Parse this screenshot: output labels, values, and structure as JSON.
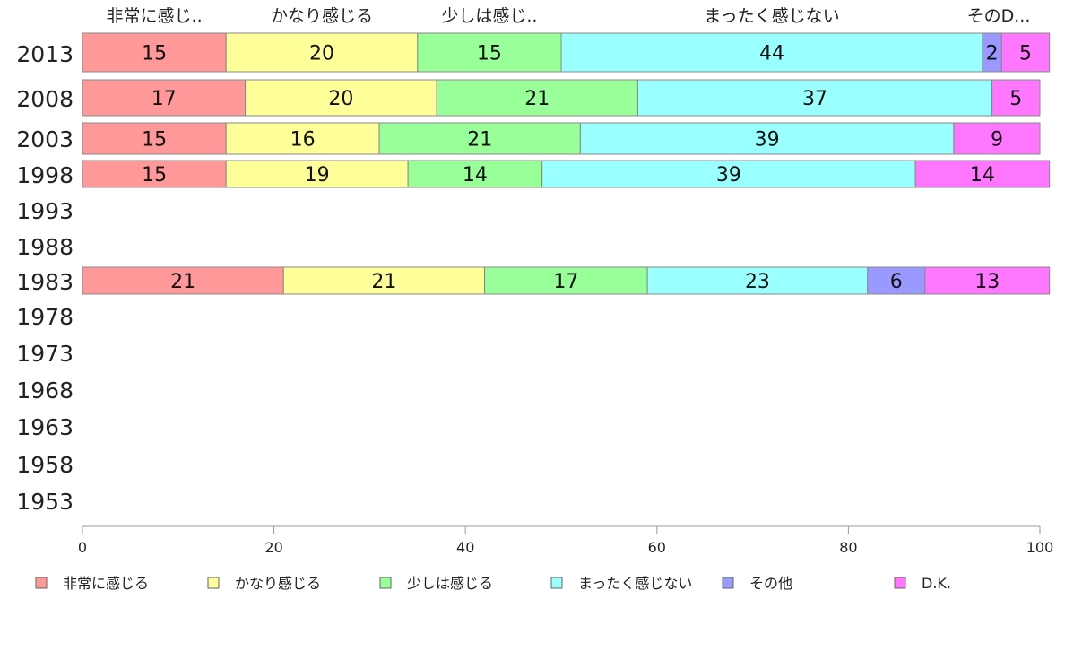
{
  "chart_data": {
    "type": "bar",
    "orientation": "horizontal",
    "stacked": true,
    "categories": [
      "2013",
      "2008",
      "2003",
      "1998",
      "1993",
      "1988",
      "1983",
      "1978",
      "1973",
      "1968",
      "1963",
      "1958",
      "1953"
    ],
    "series": [
      {
        "name": "非常に感じる",
        "top_label": "非常に感じ..",
        "color": "#ff9999",
        "values": [
          15,
          17,
          15,
          15,
          null,
          null,
          21,
          null,
          null,
          null,
          null,
          null,
          null
        ]
      },
      {
        "name": "かなり感じる",
        "top_label": "かなり感じる",
        "color": "#ffff99",
        "values": [
          20,
          20,
          16,
          19,
          null,
          null,
          21,
          null,
          null,
          null,
          null,
          null,
          null
        ]
      },
      {
        "name": "少しは感じる",
        "top_label": "少しは感じ..",
        "color": "#99ff99",
        "values": [
          15,
          21,
          21,
          14,
          null,
          null,
          17,
          null,
          null,
          null,
          null,
          null,
          null
        ]
      },
      {
        "name": "まったく感じない",
        "top_label": "まったく感じない",
        "color": "#99ffff",
        "values": [
          44,
          37,
          39,
          39,
          null,
          null,
          23,
          null,
          null,
          null,
          null,
          null,
          null
        ]
      },
      {
        "name": "その他",
        "top_label": "",
        "color": "#9999ff",
        "values": [
          2,
          0,
          0,
          0,
          null,
          null,
          6,
          null,
          null,
          null,
          null,
          null,
          null
        ]
      },
      {
        "name": "D.K.",
        "top_label": "そのD...",
        "color": "#ff77ff",
        "values": [
          5,
          5,
          9,
          14,
          null,
          null,
          13,
          null,
          null,
          null,
          null,
          null,
          null
        ]
      }
    ],
    "xlim": [
      0,
      100
    ],
    "xticks": [
      "0",
      "20",
      "40",
      "60",
      "80",
      "100"
    ],
    "legend_position": "bottom",
    "grid": false
  }
}
